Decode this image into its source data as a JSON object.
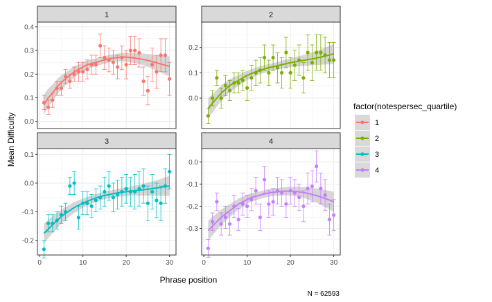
{
  "chart_data": {
    "type": "scatter",
    "facet_variable": "notespersec_quartile",
    "xlabel": "Phrase position",
    "ylabel": "Mean Difficulty",
    "caption": "N = 62593",
    "legend_title": "factor(notespersec_quartile)",
    "legend_position": "right",
    "grid": true,
    "smooth": "fitted curve with grey confidence band",
    "x_ticks": [
      0,
      10,
      20,
      30
    ],
    "xlim": [
      -0.5,
      31.5
    ],
    "panels": [
      {
        "label": "1",
        "color": "#F8766D",
        "ylim": [
          -0.03,
          0.42
        ],
        "y_ticks": [
          0.0,
          0.1,
          0.2,
          0.3,
          0.4
        ],
        "y_tick_labels": [
          "0.0",
          "0.1",
          "0.2",
          "0.3",
          "0.4"
        ],
        "x": [
          1,
          2,
          3,
          4,
          5,
          6,
          7,
          8,
          9,
          10,
          11,
          12,
          13,
          14,
          15,
          16,
          17,
          18,
          19,
          20,
          21,
          22,
          23,
          24,
          25,
          26,
          27,
          28,
          29,
          30
        ],
        "y": [
          0.08,
          0.06,
          0.09,
          0.14,
          0.14,
          0.19,
          0.17,
          0.2,
          0.21,
          0.21,
          0.22,
          0.24,
          0.24,
          0.32,
          0.27,
          0.26,
          0.25,
          0.23,
          0.27,
          0.24,
          0.3,
          0.3,
          0.29,
          0.17,
          0.13,
          0.24,
          0.21,
          0.28,
          0.28,
          0.18
        ],
        "err": [
          0.03,
          0.03,
          0.03,
          0.03,
          0.03,
          0.03,
          0.03,
          0.03,
          0.04,
          0.04,
          0.04,
          0.04,
          0.04,
          0.05,
          0.05,
          0.05,
          0.05,
          0.05,
          0.05,
          0.06,
          0.06,
          0.06,
          0.06,
          0.06,
          0.06,
          0.07,
          0.07,
          0.07,
          0.07,
          0.07
        ],
        "smooth_y": [
          0.07,
          0.1,
          0.12,
          0.145,
          0.165,
          0.18,
          0.195,
          0.21,
          0.22,
          0.23,
          0.24,
          0.245,
          0.25,
          0.255,
          0.26,
          0.265,
          0.268,
          0.27,
          0.272,
          0.272,
          0.27,
          0.268,
          0.265,
          0.262,
          0.258,
          0.253,
          0.248,
          0.243,
          0.238,
          0.233
        ]
      },
      {
        "label": "2",
        "color": "#7CAE00",
        "ylim": [
          -0.12,
          0.3
        ],
        "y_ticks": [
          0.0,
          0.1,
          0.2
        ],
        "y_tick_labels": [
          "0.0",
          "0.1",
          "0.2"
        ],
        "x": [
          1,
          2,
          3,
          4,
          5,
          6,
          7,
          8,
          9,
          10,
          11,
          12,
          13,
          14,
          15,
          16,
          17,
          18,
          19,
          20,
          21,
          22,
          23,
          24,
          25,
          26,
          27,
          28,
          29,
          30
        ],
        "y": [
          -0.07,
          0.0,
          0.08,
          0.0,
          0.05,
          0.03,
          0.06,
          0.06,
          0.07,
          0.04,
          0.08,
          0.1,
          0.11,
          0.16,
          0.1,
          0.16,
          0.12,
          0.1,
          0.18,
          0.1,
          0.13,
          0.15,
          0.08,
          0.18,
          0.14,
          0.18,
          0.18,
          0.17,
          0.15,
          0.15
        ],
        "err": [
          0.03,
          0.03,
          0.03,
          0.04,
          0.04,
          0.04,
          0.04,
          0.04,
          0.04,
          0.05,
          0.05,
          0.05,
          0.05,
          0.05,
          0.05,
          0.05,
          0.06,
          0.06,
          0.06,
          0.06,
          0.06,
          0.06,
          0.06,
          0.07,
          0.07,
          0.07,
          0.07,
          0.07,
          0.07,
          0.07
        ],
        "smooth_y": [
          -0.04,
          -0.02,
          0.0,
          0.02,
          0.035,
          0.05,
          0.06,
          0.07,
          0.08,
          0.09,
          0.097,
          0.104,
          0.11,
          0.115,
          0.12,
          0.124,
          0.128,
          0.132,
          0.136,
          0.14,
          0.143,
          0.146,
          0.149,
          0.152,
          0.155,
          0.158,
          0.162,
          0.166,
          0.17,
          0.175
        ]
      },
      {
        "label": "3",
        "color": "#00BFC4",
        "ylim": [
          -0.25,
          0.12
        ],
        "y_ticks": [
          -0.2,
          -0.1,
          0.0,
          0.1
        ],
        "y_tick_labels": [
          "-0.2",
          "-0.1",
          "0.0",
          "0.1"
        ],
        "x": [
          1,
          2,
          3,
          4,
          5,
          6,
          7,
          8,
          9,
          10,
          11,
          12,
          13,
          14,
          15,
          16,
          17,
          18,
          19,
          20,
          21,
          22,
          23,
          24,
          25,
          26,
          27,
          28,
          29,
          30
        ],
        "y": [
          -0.23,
          -0.14,
          -0.14,
          -0.13,
          -0.11,
          -0.1,
          -0.01,
          0.0,
          -0.12,
          -0.07,
          -0.07,
          -0.08,
          -0.06,
          -0.05,
          -0.03,
          -0.01,
          -0.05,
          -0.04,
          -0.03,
          -0.02,
          -0.03,
          -0.03,
          -0.02,
          -0.01,
          -0.07,
          -0.03,
          -0.06,
          -0.07,
          -0.01,
          0.04
        ],
        "err": [
          0.03,
          0.03,
          0.03,
          0.03,
          0.03,
          0.03,
          0.03,
          0.04,
          0.04,
          0.04,
          0.04,
          0.04,
          0.04,
          0.04,
          0.05,
          0.05,
          0.05,
          0.05,
          0.05,
          0.05,
          0.05,
          0.06,
          0.06,
          0.06,
          0.06,
          0.06,
          0.06,
          0.06,
          0.06,
          0.06
        ],
        "smooth_y": [
          -0.175,
          -0.16,
          -0.145,
          -0.13,
          -0.117,
          -0.105,
          -0.095,
          -0.085,
          -0.077,
          -0.07,
          -0.063,
          -0.057,
          -0.052,
          -0.047,
          -0.043,
          -0.04,
          -0.037,
          -0.034,
          -0.032,
          -0.03,
          -0.028,
          -0.026,
          -0.025,
          -0.023,
          -0.021,
          -0.019,
          -0.017,
          -0.015,
          -0.012,
          -0.01
        ]
      },
      {
        "label": "4",
        "color": "#C77CFF",
        "ylim": [
          -0.42,
          0.06
        ],
        "y_ticks": [
          -0.3,
          -0.2,
          -0.1,
          0.0
        ],
        "y_tick_labels": [
          "-0.3",
          "-0.2",
          "-0.1",
          "0.0"
        ],
        "x": [
          1,
          2,
          3,
          4,
          5,
          6,
          7,
          8,
          9,
          10,
          11,
          12,
          13,
          14,
          15,
          16,
          17,
          18,
          19,
          20,
          21,
          22,
          23,
          24,
          25,
          26,
          27,
          28,
          29,
          30
        ],
        "y": [
          -0.39,
          -0.27,
          -0.18,
          -0.28,
          -0.25,
          -0.28,
          -0.2,
          -0.26,
          -0.19,
          -0.2,
          -0.17,
          -0.13,
          -0.25,
          -0.08,
          -0.19,
          -0.18,
          -0.13,
          -0.14,
          -0.19,
          -0.13,
          -0.14,
          -0.16,
          -0.2,
          -0.12,
          -0.11,
          -0.02,
          -0.12,
          -0.15,
          -0.26,
          -0.24
        ],
        "err": [
          0.04,
          0.04,
          0.04,
          0.05,
          0.05,
          0.05,
          0.05,
          0.05,
          0.05,
          0.05,
          0.05,
          0.06,
          0.06,
          0.06,
          0.06,
          0.06,
          0.06,
          0.06,
          0.06,
          0.06,
          0.06,
          0.06,
          0.07,
          0.07,
          0.07,
          0.07,
          0.07,
          0.07,
          0.07,
          0.07
        ],
        "smooth_y": [
          -0.31,
          -0.29,
          -0.27,
          -0.25,
          -0.235,
          -0.22,
          -0.205,
          -0.19,
          -0.18,
          -0.17,
          -0.16,
          -0.155,
          -0.15,
          -0.145,
          -0.14,
          -0.137,
          -0.135,
          -0.133,
          -0.132,
          -0.132,
          -0.133,
          -0.135,
          -0.138,
          -0.142,
          -0.147,
          -0.152,
          -0.158,
          -0.165,
          -0.172,
          -0.18
        ]
      }
    ]
  }
}
